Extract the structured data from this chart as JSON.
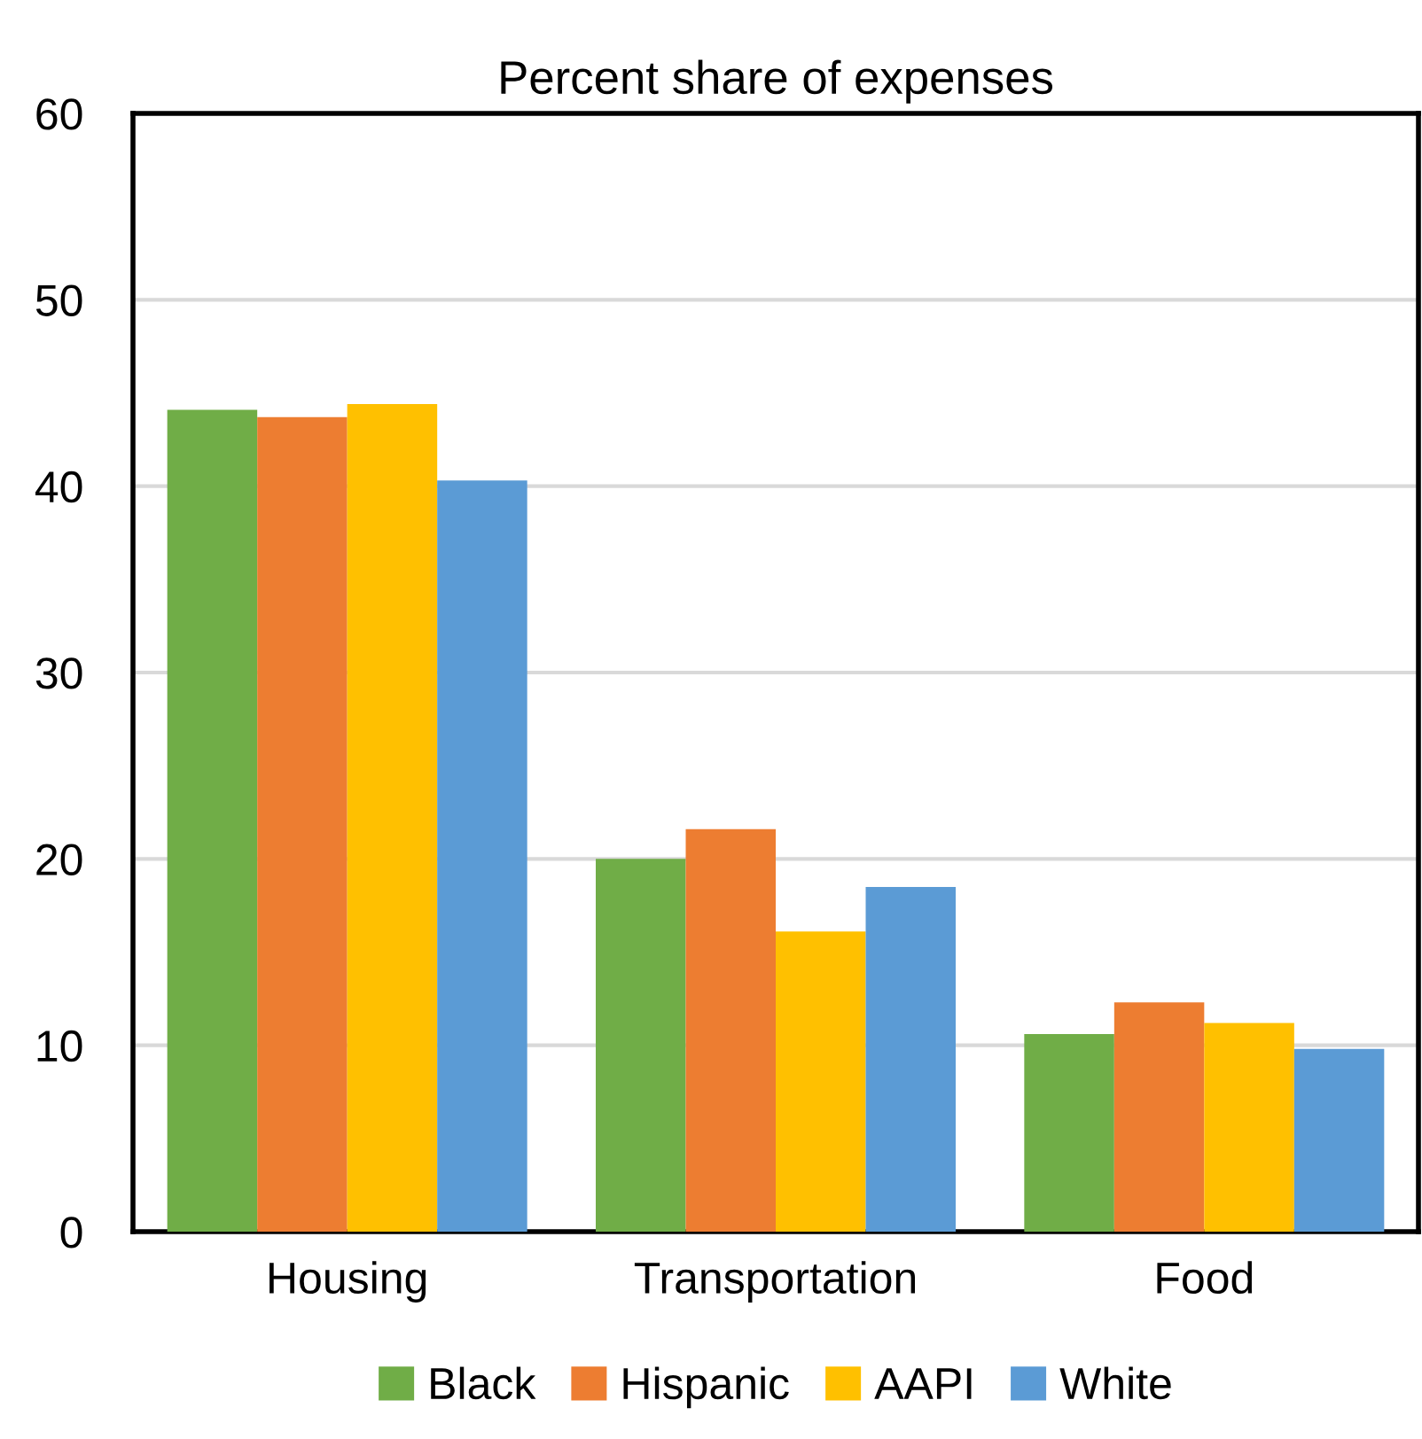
{
  "chart_data": {
    "type": "bar",
    "title": "Percent share of expenses",
    "categories": [
      "Housing",
      "Transportation",
      "Food"
    ],
    "series": [
      {
        "name": "Black",
        "color": "#70ad47",
        "values": [
          44.1,
          20.0,
          10.6
        ]
      },
      {
        "name": "Hispanic",
        "color": "#ed7d31",
        "values": [
          43.7,
          21.6,
          12.3
        ]
      },
      {
        "name": "AAPI",
        "color": "#ffc000",
        "values": [
          44.4,
          16.1,
          11.2
        ]
      },
      {
        "name": "White",
        "color": "#5b9bd5",
        "values": [
          40.3,
          18.5,
          9.8
        ]
      }
    ],
    "ylim": [
      0,
      60
    ],
    "yticks": [
      0,
      10,
      20,
      30,
      40,
      50,
      60
    ],
    "grid": "y",
    "legend": "bottom"
  }
}
